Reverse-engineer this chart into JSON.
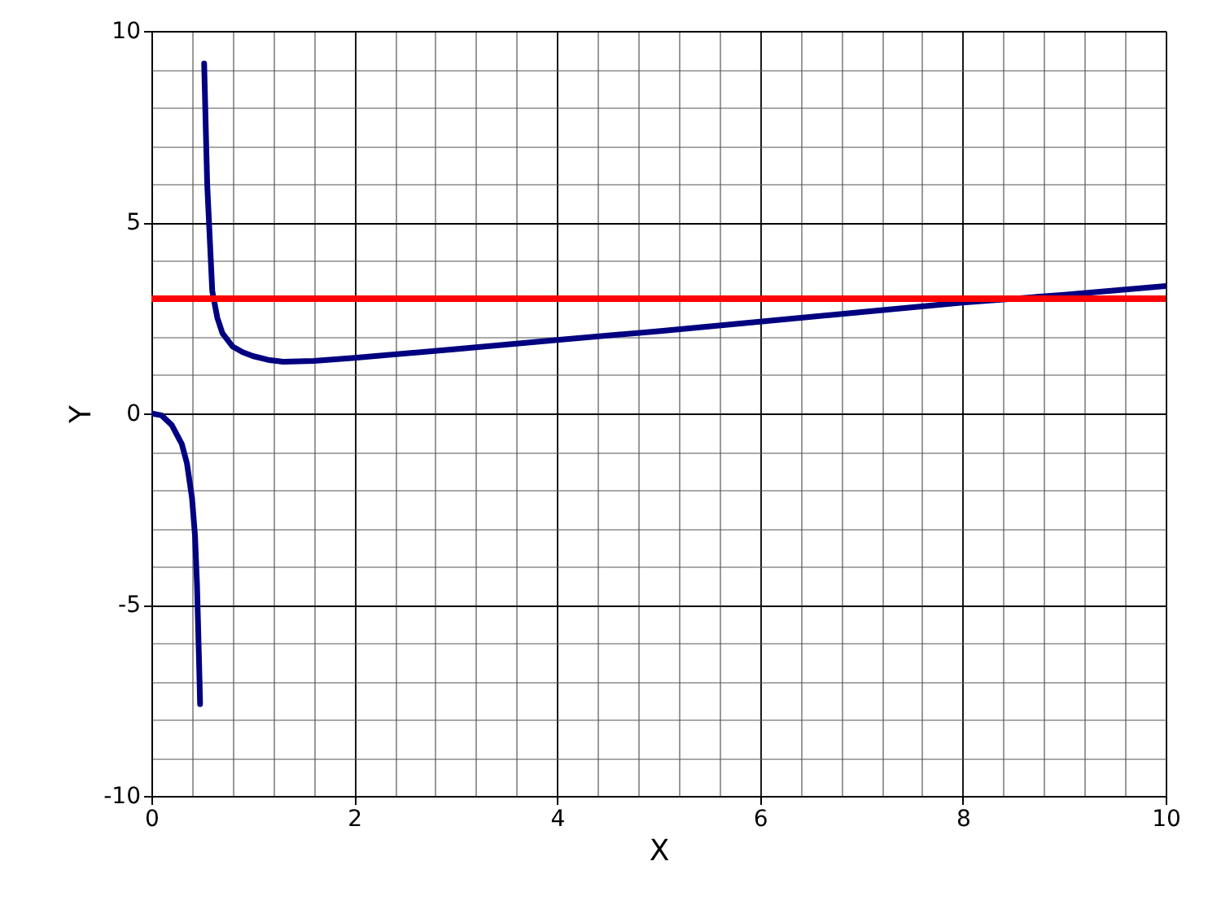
{
  "chart_data": {
    "type": "line",
    "xlabel": "X",
    "ylabel": "Y",
    "xlim": [
      0,
      10
    ],
    "ylim": [
      -10,
      10
    ],
    "xticks": [
      0,
      {
        "value": 0.4,
        "label": null
      },
      {
        "value": 0.8,
        "label": null
      },
      {
        "value": 1.2,
        "label": null
      },
      {
        "value": 1.6,
        "label": null
      },
      2,
      {
        "value": 2.4,
        "label": null
      },
      {
        "value": 2.8,
        "label": null
      },
      {
        "value": 3.2,
        "label": null
      },
      {
        "value": 3.6,
        "label": null
      },
      4,
      {
        "value": 4.4,
        "label": null
      },
      {
        "value": 4.8,
        "label": null
      },
      {
        "value": 5.2,
        "label": null
      },
      {
        "value": 5.6,
        "label": null
      },
      6,
      {
        "value": 6.4,
        "label": null
      },
      {
        "value": 6.8,
        "label": null
      },
      {
        "value": 7.2,
        "label": null
      },
      {
        "value": 7.6,
        "label": null
      },
      8,
      {
        "value": 8.4,
        "label": null
      },
      {
        "value": 8.8,
        "label": null
      },
      {
        "value": 9.2,
        "label": null
      },
      {
        "value": 9.6,
        "label": null
      },
      10
    ],
    "yticks": [
      -10,
      {
        "value": -9,
        "label": null
      },
      {
        "value": -8,
        "label": null
      },
      {
        "value": -7,
        "label": null
      },
      {
        "value": -6,
        "label": null
      },
      -5,
      {
        "value": -4,
        "label": null
      },
      {
        "value": -3,
        "label": null
      },
      {
        "value": -2,
        "label": null
      },
      {
        "value": -1,
        "label": null
      },
      0,
      {
        "value": 1,
        "label": null
      },
      {
        "value": 2,
        "label": null
      },
      {
        "value": 3,
        "label": null
      },
      {
        "value": 4,
        "label": null
      },
      5,
      {
        "value": 6,
        "label": null
      },
      {
        "value": 7,
        "label": null
      },
      {
        "value": 8,
        "label": null
      },
      {
        "value": 9,
        "label": null
      },
      10
    ],
    "grid": true,
    "marker": "none",
    "line_style": "solid",
    "series": [
      {
        "color": "#000080",
        "x": [
          0,
          0.1,
          0.2,
          0.3,
          0.35,
          0.4,
          0.43,
          0.45,
          0.47,
          0.48,
          0.5,
          0.52,
          0.55,
          0.6,
          0.65,
          0.7,
          0.8,
          0.9,
          1.0,
          1.15,
          1.3,
          1.6,
          2,
          3,
          4,
          5,
          6,
          7,
          8,
          9,
          10
        ],
        "values": [
          0,
          -0.05,
          -0.3,
          -0.8,
          -1.3,
          -2.2,
          -3.2,
          -4.5,
          -6.5,
          -7.6,
          null,
          9.15,
          6,
          3.2,
          2.5,
          2.1,
          1.75,
          1.6,
          1.5,
          1.4,
          1.35,
          1.37,
          1.45,
          1.68,
          1.92,
          2.15,
          2.4,
          2.65,
          2.9,
          3.1,
          3.33
        ]
      }
    ],
    "ref_lines": [
      {
        "axis": "y",
        "value": 3,
        "color": "#ff0000",
        "line_style": "solid"
      }
    ]
  }
}
